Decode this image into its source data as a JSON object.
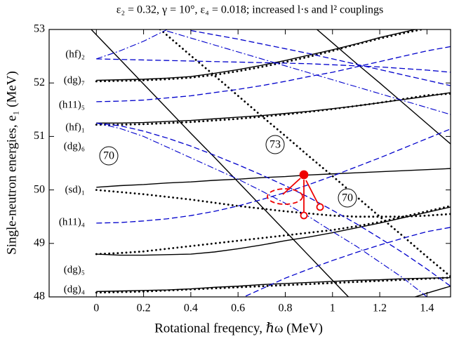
{
  "chart_data": {
    "type": "line",
    "title": "ε₂ = 0.32, γ = 10°, ε₄ = 0.018; increased l·s and l² couplings",
    "x_label": "Rotational freqency, ℏω (MeV)",
    "y_label": "Single-neutron energies, e₁ (MeV)",
    "xlim": [
      -0.2,
      1.5
    ],
    "ylim": [
      48,
      53
    ],
    "xticks": [
      0,
      0.2,
      0.4,
      0.6,
      0.8,
      1,
      1.2,
      1.4
    ],
    "yticks": [
      48,
      49,
      50,
      51,
      52,
      53
    ],
    "x": [
      -0.2,
      -0.1,
      0,
      0.1,
      0.2,
      0.3,
      0.4,
      0.5,
      0.6,
      0.7,
      0.8,
      0.9,
      1.0,
      1.1,
      1.2,
      1.3,
      1.4,
      1.5
    ],
    "series": [
      {
        "color": "#000000",
        "style": "solid",
        "values": [
          null,
          null,
          52.05,
          52.06,
          52.07,
          52.09,
          52.12,
          52.18,
          52.25,
          52.33,
          52.42,
          52.52,
          52.62,
          52.73,
          52.85,
          52.95,
          53.05,
          53.12
        ]
      },
      {
        "color": "#000000",
        "style": "solid",
        "values": [
          null,
          null,
          51.25,
          51.25,
          51.26,
          51.28,
          51.3,
          51.33,
          51.36,
          51.39,
          51.43,
          51.47,
          51.52,
          51.57,
          51.63,
          51.69,
          51.75,
          51.82
        ]
      },
      {
        "color": "#000000",
        "style": "solid",
        "values": [
          null,
          null,
          50.05,
          50.08,
          50.1,
          50.13,
          50.15,
          50.18,
          50.2,
          50.23,
          50.25,
          50.28,
          50.3,
          50.32,
          50.34,
          50.36,
          50.38,
          50.4
        ]
      },
      {
        "color": "#000000",
        "style": "solid",
        "values": [
          null,
          null,
          48.8,
          48.78,
          48.78,
          48.79,
          48.8,
          48.84,
          48.9,
          48.97,
          49.05,
          49.12,
          49.2,
          49.29,
          49.38,
          49.48,
          49.58,
          49.68
        ]
      },
      {
        "color": "#000000",
        "style": "solid",
        "values": [
          null,
          null,
          48.1,
          48.11,
          48.12,
          48.13,
          48.15,
          48.18,
          48.2,
          48.23,
          48.25,
          48.27,
          48.29,
          48.31,
          48.32,
          48.34,
          48.35,
          48.36
        ]
      },
      {
        "color": "#000000",
        "style": "solid",
        "values": [
          53.82,
          53.36,
          52.9,
          52.44,
          51.98,
          51.52,
          51.06,
          50.61,
          50.15,
          49.69,
          49.23,
          48.77,
          48.31,
          47.85,
          null,
          null,
          null,
          null
        ]
      },
      {
        "color": "#000000",
        "style": "solid",
        "values": [
          null,
          null,
          null,
          null,
          null,
          null,
          null,
          null,
          null,
          null,
          null,
          53.13,
          52.75,
          52.37,
          52.0,
          51.62,
          51.24,
          50.86
        ]
      },
      {
        "color": "#000000",
        "style": "solid",
        "values": [
          null,
          null,
          null,
          null,
          null,
          null,
          null,
          null,
          null,
          null,
          null,
          null,
          null,
          null,
          null,
          47.93,
          48.07,
          48.2
        ]
      },
      {
        "color": "#000000",
        "style": "dotted",
        "values": [
          null,
          null,
          null,
          null,
          53.26,
          52.89,
          52.51,
          52.14,
          51.76,
          51.38,
          51.01,
          50.63,
          50.26,
          49.88,
          49.5,
          49.13,
          48.75,
          48.38
        ]
      },
      {
        "color": "#000000",
        "style": "dotted",
        "values": [
          null,
          null,
          52.03,
          52.04,
          52.05,
          52.07,
          52.1,
          52.15,
          52.22,
          52.3,
          52.39,
          52.49,
          52.6,
          52.72,
          52.83,
          52.93,
          53.02,
          53.1
        ]
      },
      {
        "color": "#000000",
        "style": "dotted",
        "values": [
          null,
          null,
          51.22,
          51.22,
          51.23,
          51.25,
          51.27,
          51.3,
          51.33,
          51.37,
          51.41,
          51.46,
          51.51,
          51.57,
          51.63,
          51.7,
          51.77,
          51.8
        ]
      },
      {
        "color": "#000000",
        "style": "dotted",
        "values": [
          null,
          null,
          50.0,
          49.96,
          49.92,
          49.87,
          49.82,
          49.76,
          49.7,
          49.65,
          49.6,
          49.56,
          49.52,
          49.5,
          49.5,
          49.5,
          49.52,
          49.55
        ]
      },
      {
        "color": "#000000",
        "style": "dotted",
        "values": [
          null,
          null,
          48.8,
          48.82,
          48.85,
          48.9,
          48.95,
          49.0,
          49.05,
          49.1,
          49.15,
          49.2,
          49.25,
          49.32,
          49.4,
          49.5,
          49.6,
          49.7
        ]
      },
      {
        "color": "#000000",
        "style": "dotted",
        "values": [
          null,
          null,
          48.08,
          48.09,
          48.1,
          48.12,
          48.14,
          48.16,
          48.18,
          48.2,
          48.22,
          48.24,
          48.26,
          48.28,
          48.3,
          48.32,
          48.34,
          48.36
        ]
      },
      {
        "color": "#0000cc",
        "style": "dashed",
        "values": [
          null,
          null,
          52.45,
          52.44,
          52.43,
          52.42,
          52.41,
          52.4,
          52.39,
          52.38,
          52.37,
          52.36,
          52.34,
          52.32,
          52.3,
          52.27,
          52.24,
          52.2
        ]
      },
      {
        "color": "#0000cc",
        "style": "dashed",
        "values": [
          null,
          null,
          51.65,
          51.66,
          51.68,
          51.72,
          51.76,
          51.82,
          51.88,
          51.95,
          52.03,
          52.12,
          52.2,
          52.3,
          52.4,
          52.5,
          52.6,
          52.68
        ]
      },
      {
        "color": "#0000cc",
        "style": "dashed",
        "values": [
          null,
          null,
          51.25,
          51.2,
          51.1,
          50.97,
          50.82,
          50.65,
          50.47,
          50.28,
          50.08,
          49.86,
          49.62,
          49.37,
          49.1,
          48.82,
          48.52,
          48.2
        ]
      },
      {
        "color": "#0000cc",
        "style": "dashed",
        "values": [
          null,
          null,
          49.38,
          49.39,
          49.42,
          49.46,
          49.52,
          49.6,
          49.7,
          49.82,
          49.95,
          50.1,
          50.26,
          50.43,
          50.6,
          50.78,
          50.96,
          51.14
        ]
      },
      {
        "color": "#0000cc",
        "style": "dashed",
        "values": [
          null,
          null,
          null,
          null,
          null,
          null,
          null,
          null,
          47.95,
          48.15,
          48.35,
          48.52,
          48.68,
          48.83,
          48.97,
          49.1,
          49.22,
          49.3
        ]
      },
      {
        "color": "#0000cc",
        "style": "dashed",
        "values": [
          null,
          null,
          null,
          null,
          null,
          null,
          52.98,
          52.9,
          52.82,
          52.73,
          52.64,
          52.55,
          52.45,
          52.35,
          52.25,
          52.15,
          52.05,
          51.95
        ]
      },
      {
        "color": "#0000cc",
        "style": "dashdot",
        "values": [
          null,
          null,
          52.45,
          52.6,
          52.78,
          53.0,
          null,
          null,
          null,
          null,
          null,
          null,
          null,
          null,
          null,
          null,
          null,
          null
        ]
      },
      {
        "color": "#0000cc",
        "style": "dashdot",
        "values": [
          null,
          null,
          51.25,
          51.15,
          51.0,
          50.8,
          50.6,
          50.4,
          50.2,
          49.98,
          49.75,
          49.5,
          49.22,
          48.95,
          48.65,
          48.35,
          48.0,
          null
        ]
      },
      {
        "color": "#0000cc",
        "style": "dashdot",
        "values": [
          null,
          null,
          null,
          null,
          null,
          52.97,
          52.84,
          52.71,
          52.58,
          52.45,
          52.32,
          52.19,
          52.06,
          51.93,
          51.8,
          51.67,
          51.54,
          51.41
        ]
      }
    ],
    "annotations": [
      "(hf)₂",
      "(dg)₇",
      "(h11)₅",
      "(hf)₁",
      "(dg)₆",
      "(sd)₁",
      "(h11)₄",
      "(dg)₅",
      "(dg)₄"
    ],
    "shell_labels": [
      "70",
      "73",
      "70"
    ]
  }
}
